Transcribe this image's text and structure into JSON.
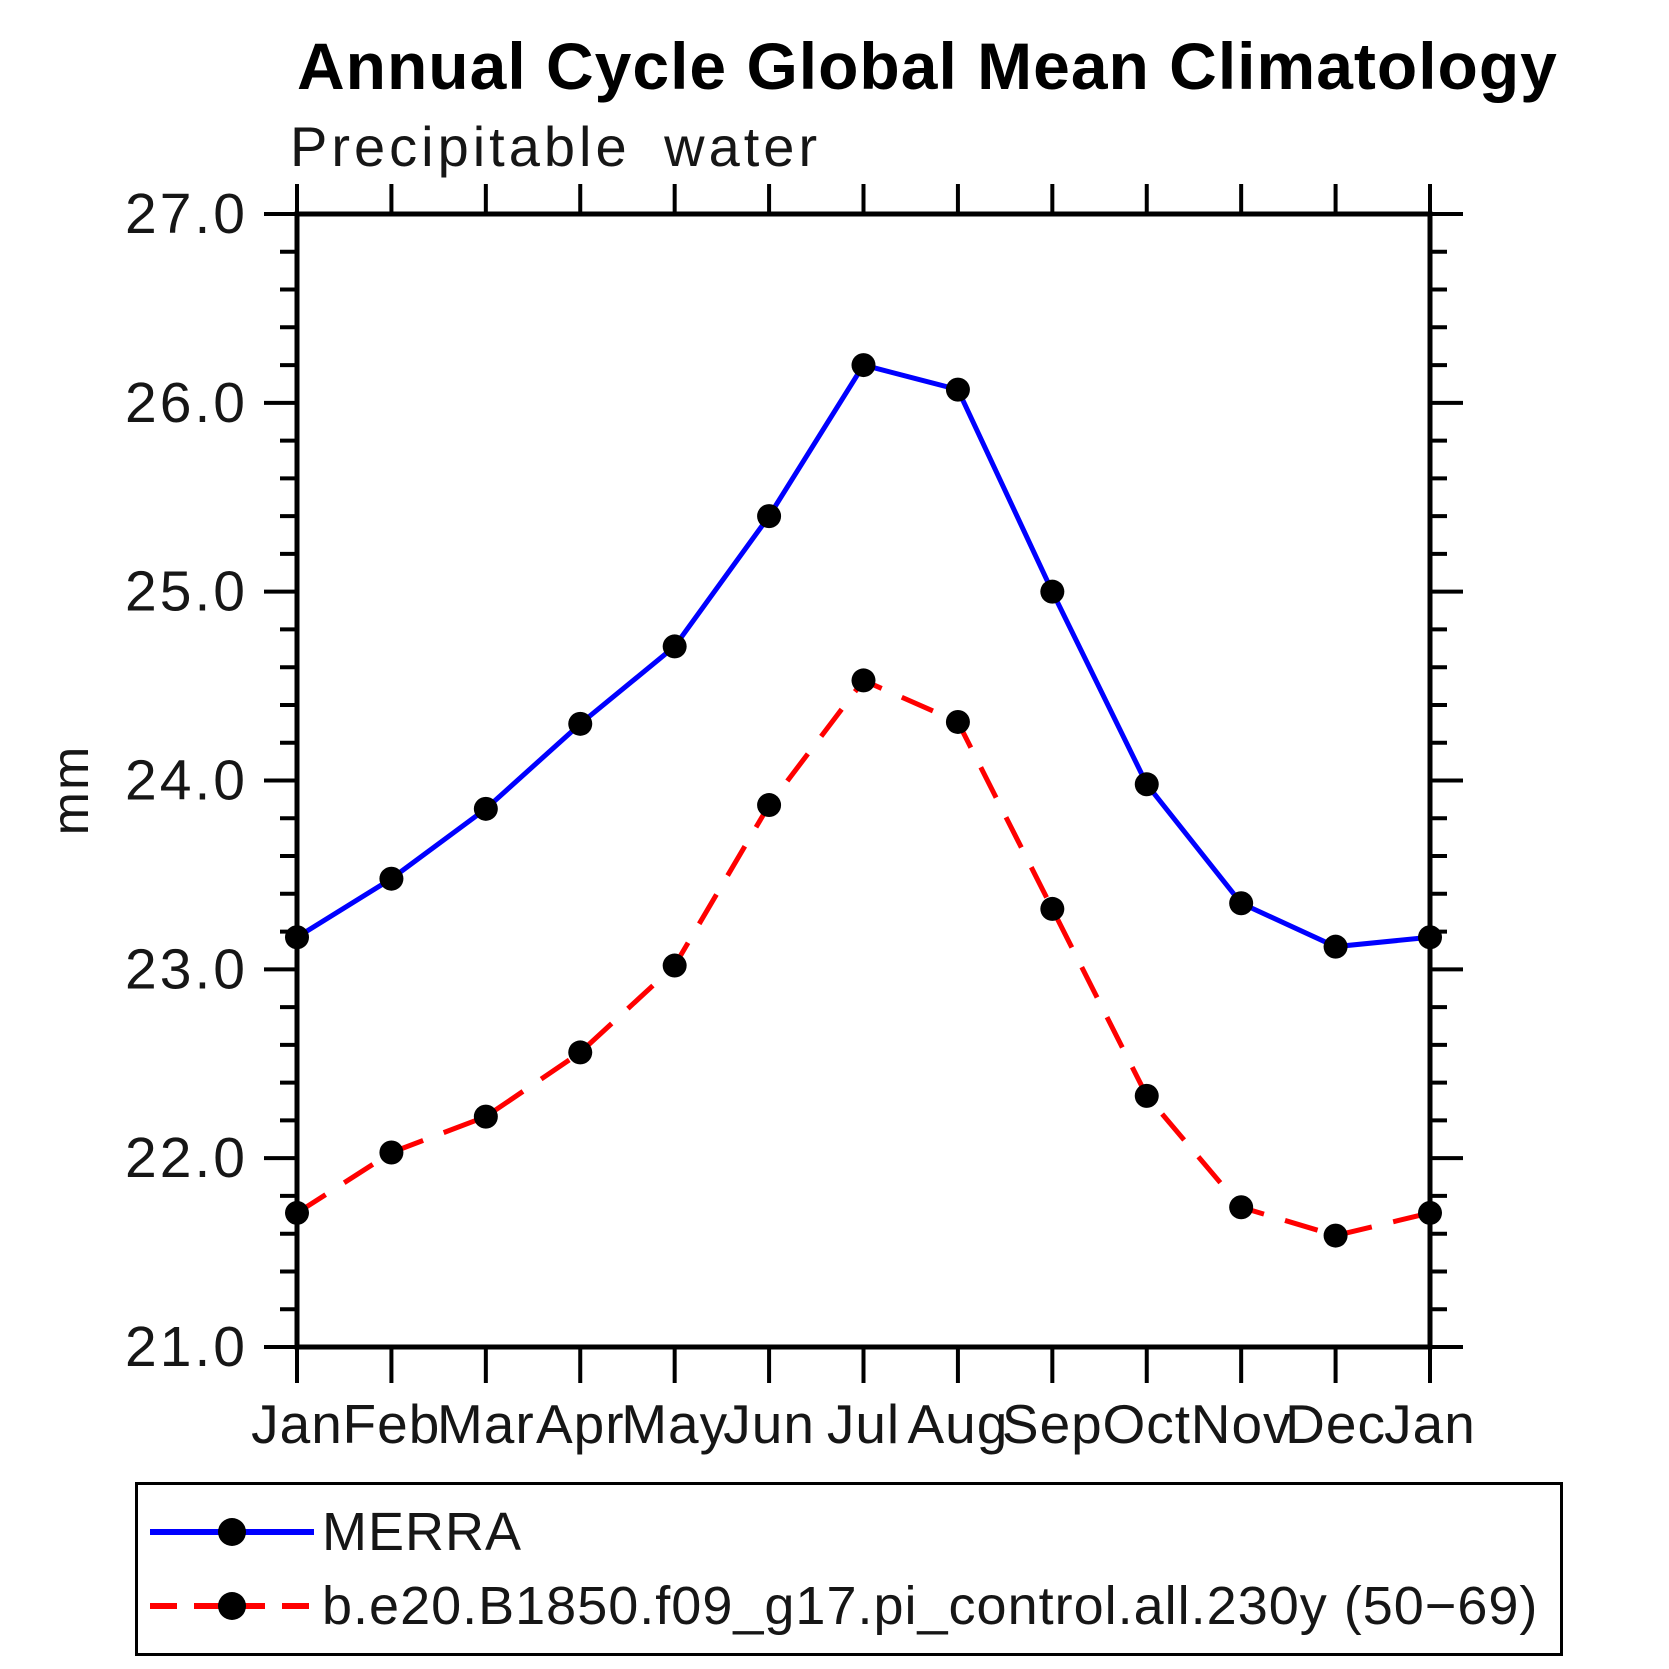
{
  "chart_data": {
    "type": "line",
    "title": "Annual Cycle Global Mean Climatology",
    "subtitle": "Precipitable water",
    "ylabel": "mm",
    "x_categories": [
      "Jan",
      "Feb",
      "Mar",
      "Apr",
      "May",
      "Jun",
      "Jul",
      "Aug",
      "Sep",
      "Oct",
      "Nov",
      "Dec",
      "Jan"
    ],
    "ylim": [
      21.0,
      27.0
    ],
    "y_major_ticks": [
      "21.0",
      "22.0",
      "23.0",
      "24.0",
      "25.0",
      "26.0",
      "27.0"
    ],
    "y_minor_step": 0.2,
    "grid": false,
    "legend_position": "bottom",
    "marker_shape": "filled-circle",
    "marker_color": "#000000",
    "series": [
      {
        "name": "MERRA",
        "color": "#0000ff",
        "line_style": "solid",
        "values": [
          23.17,
          23.48,
          23.85,
          24.3,
          24.71,
          25.4,
          26.2,
          26.07,
          25.0,
          23.98,
          23.35,
          23.12,
          23.17
        ]
      },
      {
        "name": "b.e20.B1850.f09_g17.pi_control.all.230y (50−69)",
        "color": "#ff0000",
        "line_style": "dashed",
        "values": [
          21.71,
          22.03,
          22.22,
          22.56,
          23.02,
          23.87,
          24.53,
          24.31,
          23.32,
          22.33,
          21.74,
          21.59,
          21.71
        ]
      }
    ]
  }
}
